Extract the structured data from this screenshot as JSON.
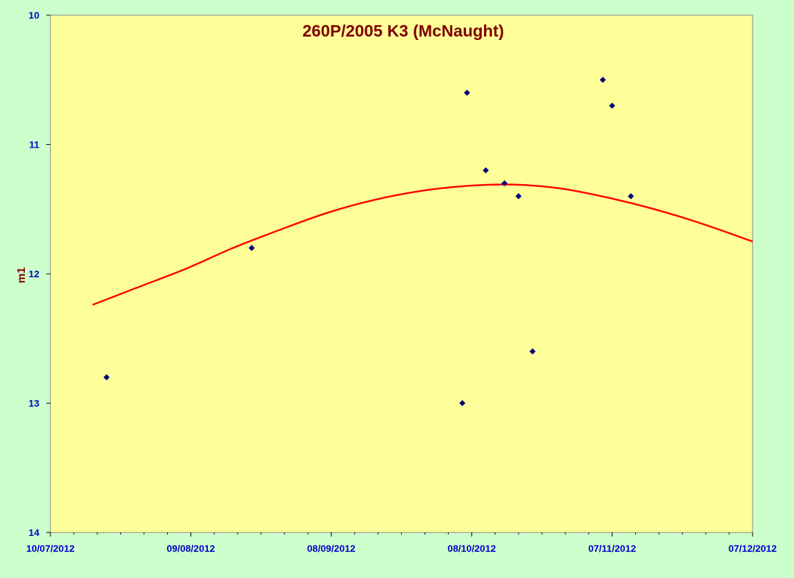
{
  "colors": {
    "background": "#ccffcc",
    "plot_area": "#ffff99",
    "title": "#800000",
    "tick_labels": "#0000cc",
    "points": "#000080",
    "curve": "#ff0000"
  },
  "chart_data": {
    "type": "scatter",
    "title": "260P/2005 K3 (McNaught)",
    "xlabel": "",
    "ylabel": "m1",
    "y_inverted": true,
    "ylim": [
      14,
      10
    ],
    "y_ticks": [
      10,
      11,
      12,
      13,
      14
    ],
    "y_tick_labels": [
      "10",
      "11",
      "12",
      "13",
      "14"
    ],
    "xlim": [
      "2012-07-10",
      "2012-12-07"
    ],
    "x_ticks": [
      "2012-07-10",
      "2012-08-09",
      "2012-09-08",
      "2012-10-08",
      "2012-11-07",
      "2012-12-07"
    ],
    "x_tick_labels": [
      "10/07/2012",
      "09/08/2012",
      "08/09/2012",
      "08/10/2012",
      "07/11/2012",
      "07/12/2012"
    ],
    "x_minor_tick_interval_days": 5,
    "grid": false,
    "legend": "none",
    "series": [
      {
        "kind": "points",
        "marker": "diamond",
        "points": [
          {
            "x": "2012-07-22",
            "y": 12.8
          },
          {
            "x": "2012-08-22",
            "y": 11.8
          },
          {
            "x": "2012-10-06",
            "y": 13.0
          },
          {
            "x": "2012-10-07",
            "y": 10.6
          },
          {
            "x": "2012-10-11",
            "y": 11.2
          },
          {
            "x": "2012-10-15",
            "y": 11.3
          },
          {
            "x": "2012-10-18",
            "y": 11.4
          },
          {
            "x": "2012-10-21",
            "y": 12.6
          },
          {
            "x": "2012-11-05",
            "y": 10.5
          },
          {
            "x": "2012-11-07",
            "y": 10.7
          },
          {
            "x": "2012-11-11",
            "y": 11.4
          }
        ]
      },
      {
        "kind": "curve",
        "points": [
          {
            "x": "2012-07-19",
            "y": 12.24
          },
          {
            "x": "2012-07-29",
            "y": 12.1
          },
          {
            "x": "2012-08-08",
            "y": 11.96
          },
          {
            "x": "2012-08-18",
            "y": 11.8
          },
          {
            "x": "2012-08-28",
            "y": 11.66
          },
          {
            "x": "2012-09-07",
            "y": 11.53
          },
          {
            "x": "2012-09-17",
            "y": 11.43
          },
          {
            "x": "2012-09-27",
            "y": 11.36
          },
          {
            "x": "2012-10-07",
            "y": 11.32
          },
          {
            "x": "2012-10-17",
            "y": 11.31
          },
          {
            "x": "2012-10-27",
            "y": 11.34
          },
          {
            "x": "2012-11-06",
            "y": 11.41
          },
          {
            "x": "2012-11-16",
            "y": 11.5
          },
          {
            "x": "2012-11-26",
            "y": 11.61
          },
          {
            "x": "2012-12-07",
            "y": 11.75
          }
        ]
      }
    ]
  }
}
